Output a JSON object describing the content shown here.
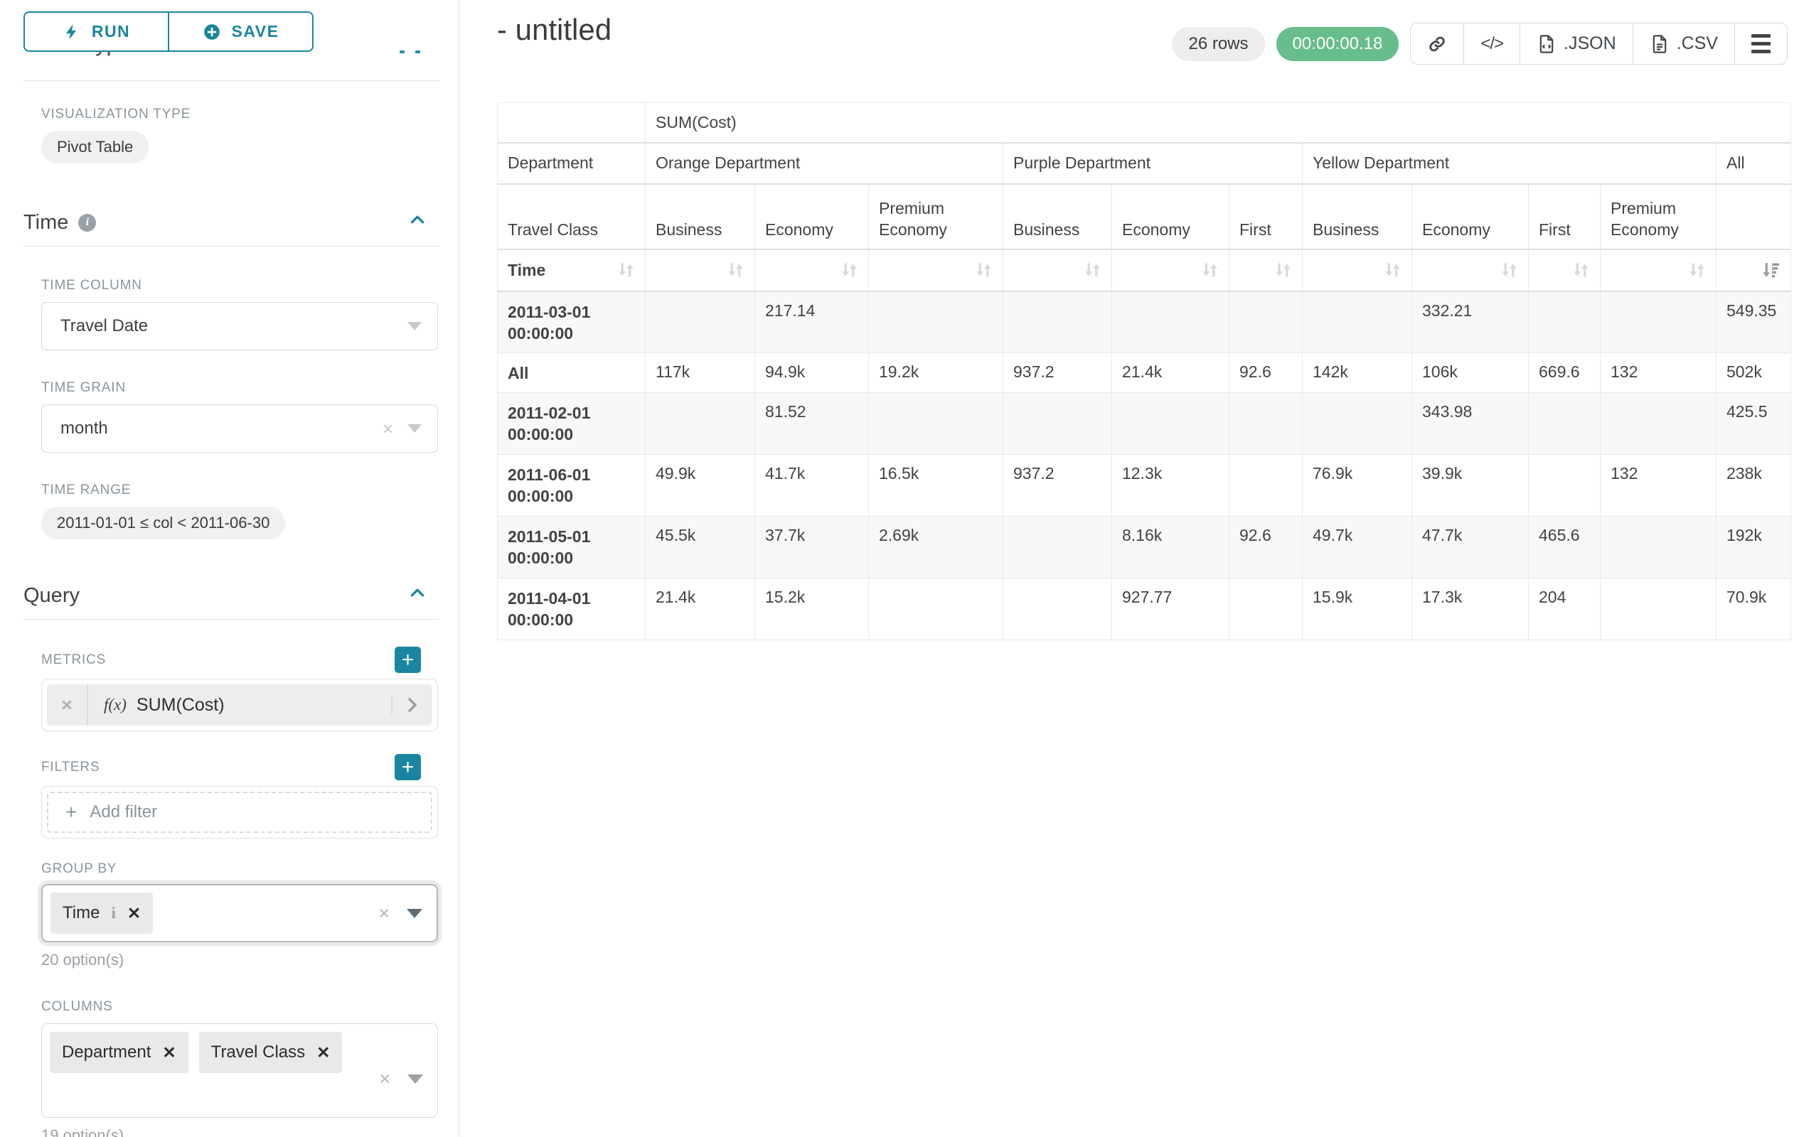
{
  "colors": {
    "accent": "#1a85a0",
    "success": "#67bd8b"
  },
  "toolbar": {
    "run": "RUN",
    "save": "SAVE"
  },
  "panel": {
    "chart_type_heading": "Chart Type",
    "viz_label": "VISUALIZATION TYPE",
    "viz_value": "Pivot Table",
    "time": {
      "title": "Time",
      "column_label": "TIME COLUMN",
      "column_value": "Travel Date",
      "grain_label": "TIME GRAIN",
      "grain_value": "month",
      "range_label": "TIME RANGE",
      "range_value": "2011-01-01 ≤ col < 2011-06-30"
    },
    "query": {
      "title": "Query",
      "metrics_label": "METRICS",
      "metric_fn": "f(x)",
      "metric_value": "SUM(Cost)",
      "filters_label": "FILTERS",
      "add_filter": "Add filter",
      "group_by_label": "GROUP BY",
      "group_by_chips": [
        {
          "label": "Time",
          "info": true
        }
      ],
      "group_by_options": "20 option(s)",
      "columns_label": "COLUMNS",
      "columns_chips": [
        {
          "label": "Department",
          "info": false
        },
        {
          "label": "Travel Class",
          "info": false
        }
      ],
      "columns_options": "19 option(s)"
    }
  },
  "header": {
    "title": "- untitled",
    "rows_badge": "26 rows",
    "timer": "00:00:00.18",
    "export_json": ".JSON",
    "export_csv": ".CSV"
  },
  "chart_data": {
    "type": "table",
    "metric_header": "SUM(Cost)",
    "row_dim_label": "Department",
    "row_subdim_label": "Travel Class",
    "time_label": "Time",
    "column_groups": [
      {
        "label": "Orange Department",
        "span": 3
      },
      {
        "label": "Purple Department",
        "span": 3
      },
      {
        "label": "Yellow Department",
        "span": 4
      },
      {
        "label": "All",
        "span": 1
      }
    ],
    "sub_columns": [
      "Business",
      "Economy",
      "Premium Economy",
      "Business",
      "Economy",
      "First",
      "Business",
      "Economy",
      "First",
      "Premium Economy",
      ""
    ],
    "sort_active_col": 10,
    "rows": [
      {
        "label": "2011-03-01 00:00:00",
        "values": [
          "",
          "217.14",
          "",
          "",
          "",
          "",
          "",
          "332.21",
          "",
          "",
          "549.35"
        ]
      },
      {
        "label": "All",
        "values": [
          "117k",
          "94.9k",
          "19.2k",
          "937.2",
          "21.4k",
          "92.6",
          "142k",
          "106k",
          "669.6",
          "132",
          "502k"
        ]
      },
      {
        "label": "2011-02-01 00:00:00",
        "values": [
          "",
          "81.52",
          "",
          "",
          "",
          "",
          "",
          "343.98",
          "",
          "",
          "425.5"
        ]
      },
      {
        "label": "2011-06-01 00:00:00",
        "values": [
          "49.9k",
          "41.7k",
          "16.5k",
          "937.2",
          "12.3k",
          "",
          "76.9k",
          "39.9k",
          "",
          "132",
          "238k"
        ]
      },
      {
        "label": "2011-05-01 00:00:00",
        "values": [
          "45.5k",
          "37.7k",
          "2.69k",
          "",
          "8.16k",
          "92.6",
          "49.7k",
          "47.7k",
          "465.6",
          "",
          "192k"
        ]
      },
      {
        "label": "2011-04-01 00:00:00",
        "values": [
          "21.4k",
          "15.2k",
          "",
          "",
          "927.77",
          "",
          "15.9k",
          "17.3k",
          "204",
          "",
          "70.9k"
        ]
      }
    ]
  }
}
